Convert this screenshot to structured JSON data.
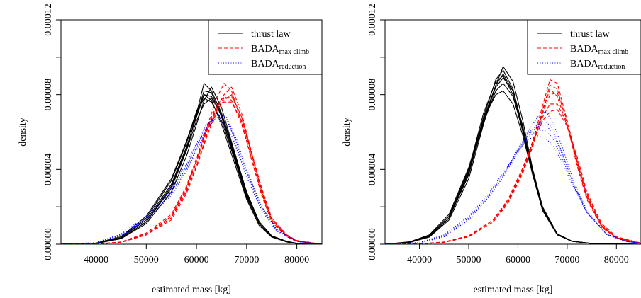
{
  "chart_data": [
    {
      "type": "line",
      "xlabel": "estimated mass [kg]",
      "ylabel": "density",
      "xlim": [
        33000,
        85000
      ],
      "ylim": [
        0,
        0.00012
      ],
      "x_ticks": [
        40000,
        50000,
        60000,
        70000,
        80000
      ],
      "y_ticks": [
        "0.00000",
        "0.00004",
        "0.00008",
        "0.00012"
      ],
      "legend": {
        "position": "top-right",
        "entries": [
          {
            "label": "thrust law",
            "sub": "",
            "color": "#000000",
            "dash": "solid"
          },
          {
            "label": "BADA",
            "sub": "max climb",
            "color": "#ff0000",
            "dash": "dashed"
          },
          {
            "label": "BADA",
            "sub": "reduction",
            "color": "#0000ff",
            "dash": "dotted"
          }
        ]
      },
      "series": [
        {
          "color": "#000000",
          "dash": "solid",
          "x": [
            33000,
            40000,
            45000,
            50000,
            55000,
            58000,
            60000,
            61500,
            63000,
            65000,
            67500,
            70000,
            72500,
            75000,
            78000,
            80000,
            85000
          ],
          "curves": [
            [
              0,
              5e-07,
              3e-06,
              1.2e-05,
              3e-05,
              5e-05,
              7e-05,
              8.6e-05,
              8.2e-05,
              7e-05,
              4.8e-05,
              2.6e-05,
              1.1e-05,
              4e-06,
              1.2e-06,
              4e-07,
              0
            ],
            [
              0,
              6e-07,
              3.5e-06,
              1.3e-05,
              3.2e-05,
              5.2e-05,
              6.8e-05,
              8e-05,
              7.9e-05,
              6.9e-05,
              4.9e-05,
              2.7e-05,
              1.2e-05,
              4.5e-06,
              1.5e-06,
              5e-07,
              0
            ],
            [
              0,
              4e-07,
              3e-06,
              1.1e-05,
              2.8e-05,
              4.7e-05,
              6.4e-05,
              7.7e-05,
              8.4e-05,
              7.3e-05,
              5e-05,
              2.7e-05,
              1.1e-05,
              4e-06,
              1.2e-06,
              4e-07,
              0
            ],
            [
              0,
              5e-07,
              3.5e-06,
              1.4e-05,
              3.4e-05,
              5.4e-05,
              7e-05,
              7.8e-05,
              7.6e-05,
              6.6e-05,
              4.6e-05,
              2.5e-05,
              1.1e-05,
              4e-06,
              1.2e-06,
              4e-07,
              0
            ],
            [
              0,
              4e-07,
              3e-06,
              1.2e-05,
              3e-05,
              5e-05,
              6.6e-05,
              7.5e-05,
              7.8e-05,
              7e-05,
              5e-05,
              2.8e-05,
              1.2e-05,
              4.5e-06,
              1.5e-06,
              5e-07,
              0
            ],
            [
              0,
              5e-07,
              3e-06,
              1.2e-05,
              3.1e-05,
              5.1e-05,
              6.9e-05,
              8.2e-05,
              8.1e-05,
              6.8e-05,
              4.7e-05,
              2.6e-05,
              1.1e-05,
              4e-06,
              1.2e-06,
              4e-07,
              0
            ],
            [
              0,
              6e-07,
              4e-06,
              1.5e-05,
              3.5e-05,
              5.5e-05,
              7.1e-05,
              8e-05,
              7.7e-05,
              6.4e-05,
              4.4e-05,
              2.4e-05,
              1e-05,
              3.8e-06,
              1.2e-06,
              4e-07,
              0
            ]
          ]
        },
        {
          "color": "#ff0000",
          "dash": "dashed",
          "x": [
            33000,
            40000,
            45000,
            50000,
            55000,
            58000,
            60000,
            62000,
            64000,
            65500,
            67000,
            69000,
            71000,
            73000,
            75000,
            78000,
            80000,
            85000
          ],
          "curves": [
            [
              0,
              2e-07,
              1e-06,
              5e-06,
              1.5e-05,
              3e-05,
              4.5e-05,
              6.2e-05,
              7.8e-05,
              8.6e-05,
              8.2e-05,
              6.5e-05,
              4.5e-05,
              2.6e-05,
              1.2e-05,
              4e-06,
              1.5e-06,
              0
            ],
            [
              0,
              2e-07,
              1e-06,
              5e-06,
              1.4e-05,
              2.8e-05,
              4.2e-05,
              5.8e-05,
              7.3e-05,
              8e-05,
              8.4e-05,
              7e-05,
              4.9e-05,
              2.8e-05,
              1.3e-05,
              4e-06,
              1.5e-06,
              0
            ],
            [
              0,
              2e-07,
              1.2e-06,
              6e-06,
              1.6e-05,
              3.1e-05,
              4.6e-05,
              6.2e-05,
              7.4e-05,
              7.9e-05,
              7.7e-05,
              6.4e-05,
              4.6e-05,
              2.7e-05,
              1.3e-05,
              4.5e-06,
              1.8e-06,
              0
            ],
            [
              0,
              2e-07,
              1e-06,
              5e-06,
              1.4e-05,
              2.9e-05,
              4.4e-05,
              6e-05,
              7.2e-05,
              7.6e-05,
              7.6e-05,
              6.6e-05,
              4.8e-05,
              2.9e-05,
              1.4e-05,
              4.5e-06,
              1.8e-06,
              0
            ],
            [
              0,
              2e-07,
              1.1e-06,
              5.5e-06,
              1.5e-05,
              3e-05,
              4.5e-05,
              6.1e-05,
              7.3e-05,
              7.8e-05,
              7.9e-05,
              6.8e-05,
              4.8e-05,
              2.8e-05,
              1.3e-05,
              4.5e-06,
              1.8e-06,
              0
            ],
            [
              0,
              2e-07,
              1e-06,
              5e-06,
              1.3e-05,
              2.7e-05,
              4.1e-05,
              5.7e-05,
              7.1e-05,
              7.7e-05,
              8e-05,
              6.8e-05,
              4.9e-05,
              3e-05,
              1.4e-05,
              5e-06,
              2e-06,
              0
            ]
          ]
        },
        {
          "color": "#0000ff",
          "dash": "dotted",
          "x": [
            33000,
            40000,
            45000,
            50000,
            55000,
            58000,
            60000,
            62000,
            64000,
            66000,
            68000,
            70000,
            73000,
            76000,
            80000,
            85000
          ],
          "curves": [
            [
              0,
              8e-07,
              5e-06,
              1.4e-05,
              2.8e-05,
              4.1e-05,
              5.2e-05,
              6.3e-05,
              7e-05,
              6.7e-05,
              5.4e-05,
              3.8e-05,
              1.9e-05,
              7.5e-06,
              1.5e-06,
              0
            ],
            [
              0,
              7e-07,
              4.5e-06,
              1.3e-05,
              2.7e-05,
              4e-05,
              5.1e-05,
              6.2e-05,
              6.9e-05,
              6.8e-05,
              5.6e-05,
              4e-05,
              2e-05,
              8e-06,
              1.6e-06,
              0
            ],
            [
              0,
              9e-07,
              5.5e-06,
              1.5e-05,
              3e-05,
              4.3e-05,
              5.4e-05,
              6.4e-05,
              6.8e-05,
              6.4e-05,
              5.2e-05,
              3.6e-05,
              1.8e-05,
              7e-06,
              1.4e-06,
              0
            ],
            [
              0,
              7e-07,
              4.5e-06,
              1.3e-05,
              2.6e-05,
              3.9e-05,
              5e-05,
              6.1e-05,
              6.8e-05,
              6.6e-05,
              5.5e-05,
              3.9e-05,
              2e-05,
              8e-06,
              1.6e-06,
              0
            ],
            [
              0,
              8e-07,
              5e-06,
              1.4e-05,
              2.9e-05,
              4.2e-05,
              5.3e-05,
              6.3e-05,
              6.7e-05,
              6.3e-05,
              5.1e-05,
              3.6e-05,
              1.8e-05,
              7e-06,
              1.4e-06,
              0
            ]
          ]
        }
      ]
    },
    {
      "type": "line",
      "xlabel": "estimated mass [kg]",
      "ylabel": "density",
      "xlim": [
        33000,
        85000
      ],
      "ylim": [
        0,
        0.00012
      ],
      "x_ticks": [
        40000,
        50000,
        60000,
        70000,
        80000
      ],
      "y_ticks": [
        "0.00000",
        "0.00004",
        "0.00008",
        "0.00012"
      ],
      "legend": {
        "position": "top-right",
        "entries": [
          {
            "label": "thrust law",
            "sub": "",
            "color": "#000000",
            "dash": "solid"
          },
          {
            "label": "BADA",
            "sub": "max climb",
            "color": "#ff0000",
            "dash": "dashed"
          },
          {
            "label": "BADA",
            "sub": "reduction",
            "color": "#0000ff",
            "dash": "dotted"
          }
        ]
      },
      "series": [
        {
          "color": "#000000",
          "dash": "solid",
          "x": [
            33000,
            38000,
            42000,
            46000,
            50000,
            53000,
            55500,
            57000,
            59000,
            61000,
            63000,
            65000,
            68000,
            71000,
            75000,
            80000,
            85000
          ],
          "curves": [
            [
              0,
              1e-06,
              4e-06,
              1.4e-05,
              3.8e-05,
              6.8e-05,
              8.8e-05,
              9.3e-05,
              8.3e-05,
              6.2e-05,
              3.8e-05,
              1.8e-05,
              5e-06,
              1.5e-06,
              4e-07,
              1e-07,
              0
            ],
            [
              0,
              1.2e-06,
              4.5e-06,
              1.5e-05,
              4e-05,
              7e-05,
              8.7e-05,
              9e-05,
              8e-05,
              6e-05,
              3.7e-05,
              1.8e-05,
              5e-06,
              1.5e-06,
              4e-07,
              1e-07,
              0
            ],
            [
              0,
              9e-07,
              3.8e-06,
              1.3e-05,
              3.5e-05,
              6.4e-05,
              8.5e-05,
              9.5e-05,
              8.7e-05,
              6.6e-05,
              4e-05,
              2e-05,
              5.5e-06,
              1.6e-06,
              4e-07,
              1e-07,
              0
            ],
            [
              0,
              1e-06,
              4e-06,
              1.4e-05,
              3.7e-05,
              6.6e-05,
              8.4e-05,
              8.9e-05,
              8.2e-05,
              6.3e-05,
              3.9e-05,
              1.9e-05,
              5e-06,
              1.5e-06,
              4e-07,
              1e-07,
              0
            ],
            [
              0,
              1.3e-06,
              5e-06,
              1.6e-05,
              4.1e-05,
              6.7e-05,
              8e-05,
              8.2e-05,
              7.5e-05,
              5.8e-05,
              3.7e-05,
              1.9e-05,
              5.5e-06,
              1.6e-06,
              4e-07,
              1e-07,
              0
            ],
            [
              0,
              1e-06,
              4.2e-06,
              1.4e-05,
              3.8e-05,
              6.5e-05,
              8.2e-05,
              8.6e-05,
              7.9e-05,
              6.1e-05,
              3.9e-05,
              2e-05,
              5.5e-06,
              1.6e-06,
              4e-07,
              1e-07,
              0
            ],
            [
              0,
              1.1e-06,
              4.5e-06,
              1.5e-05,
              3.9e-05,
              6.7e-05,
              8.5e-05,
              9.1e-05,
              8.2e-05,
              6.1e-05,
              3.8e-05,
              1.8e-05,
              5e-06,
              1.5e-06,
              4e-07,
              1e-07,
              0
            ]
          ]
        },
        {
          "color": "#ff0000",
          "dash": "dashed",
          "x": [
            33000,
            40000,
            45000,
            50000,
            55000,
            58000,
            61000,
            63000,
            65000,
            66500,
            68000,
            70000,
            72000,
            74000,
            77000,
            80000,
            85000
          ],
          "curves": [
            [
              0,
              2e-07,
              1e-06,
              4e-06,
              1.2e-05,
              2.2e-05,
              3.8e-05,
              5.2e-05,
              7.2e-05,
              8.5e-05,
              8.3e-05,
              6.4e-05,
              4.2e-05,
              2.4e-05,
              9e-06,
              3.2e-06,
              5e-07
            ],
            [
              0,
              2e-07,
              1e-06,
              4.2e-06,
              1.3e-05,
              2.4e-05,
              4e-05,
              5.5e-05,
              7.4e-05,
              8.8e-05,
              8.6e-05,
              6.6e-05,
              4.3e-05,
              2.5e-05,
              9.5e-06,
              3.5e-06,
              5e-07
            ],
            [
              0,
              2e-07,
              1.2e-06,
              4.5e-06,
              1.3e-05,
              2.4e-05,
              4.1e-05,
              5.5e-05,
              6.8e-05,
              7.5e-05,
              7.5e-05,
              6.4e-05,
              4.5e-05,
              2.7e-05,
              1e-05,
              3.6e-06,
              5e-07
            ],
            [
              0,
              2e-07,
              1e-06,
              4e-06,
              1.2e-05,
              2.2e-05,
              3.9e-05,
              5.3e-05,
              7e-05,
              8e-05,
              8.1e-05,
              6.6e-05,
              4.5e-05,
              2.6e-05,
              1e-05,
              3.5e-06,
              5e-07
            ],
            [
              0,
              2e-07,
              1.1e-06,
              4.3e-06,
              1.3e-05,
              2.3e-05,
              4e-05,
              5.4e-05,
              6.6e-05,
              7.1e-05,
              7.2e-05,
              6.3e-05,
              4.7e-05,
              2.8e-05,
              1.1e-05,
              4e-06,
              6e-07
            ],
            [
              0,
              2e-07,
              1e-06,
              4e-06,
              1.2e-05,
              2.3e-05,
              3.9e-05,
              5.4e-05,
              7.1e-05,
              8.3e-05,
              7.9e-05,
              6.3e-05,
              4.4e-05,
              2.5e-05,
              9.5e-06,
              3.4e-06,
              5e-07
            ]
          ]
        },
        {
          "color": "#0000ff",
          "dash": "dotted",
          "x": [
            33000,
            40000,
            45000,
            50000,
            54000,
            57000,
            60000,
            62000,
            64000,
            65500,
            67000,
            69000,
            71000,
            74000,
            78000,
            82000,
            85000
          ],
          "curves": [
            [
              0,
              8e-07,
              4.5e-06,
              1.4e-05,
              2.6e-05,
              3.7e-05,
              5.1e-05,
              6e-05,
              6.8e-05,
              7.1e-05,
              6.6e-05,
              5.2e-05,
              3.6e-05,
              1.8e-05,
              5.5e-06,
              1.5e-06,
              5e-07
            ],
            [
              0,
              7e-07,
              4e-06,
              1.3e-05,
              2.5e-05,
              3.6e-05,
              5e-05,
              5.9e-05,
              6.4e-05,
              6.6e-05,
              6.2e-05,
              4.9e-05,
              3.4e-05,
              1.7e-05,
              5.2e-06,
              1.4e-06,
              5e-07
            ],
            [
              0,
              9e-07,
              5e-06,
              1.5e-05,
              2.7e-05,
              3.8e-05,
              5e-05,
              5.6e-05,
              5.8e-05,
              5.7e-05,
              5.3e-05,
              4.4e-05,
              3.2e-05,
              1.7e-05,
              5.5e-06,
              1.5e-06,
              5e-07
            ],
            [
              0,
              8e-07,
              4.5e-06,
              1.4e-05,
              2.6e-05,
              3.7e-05,
              5e-05,
              5.8e-05,
              6.3e-05,
              6.4e-05,
              6e-05,
              4.8e-05,
              3.4e-05,
              1.7e-05,
              5.3e-06,
              1.4e-06,
              5e-07
            ],
            [
              0,
              7e-07,
              4e-06,
              1.3e-05,
              2.5e-05,
              3.6e-05,
              4.9e-05,
              5.7e-05,
              6.1e-05,
              6.1e-05,
              5.7e-05,
              4.6e-05,
              3.3e-05,
              1.7e-05,
              5.4e-06,
              1.5e-06,
              5e-07
            ]
          ]
        }
      ]
    }
  ]
}
